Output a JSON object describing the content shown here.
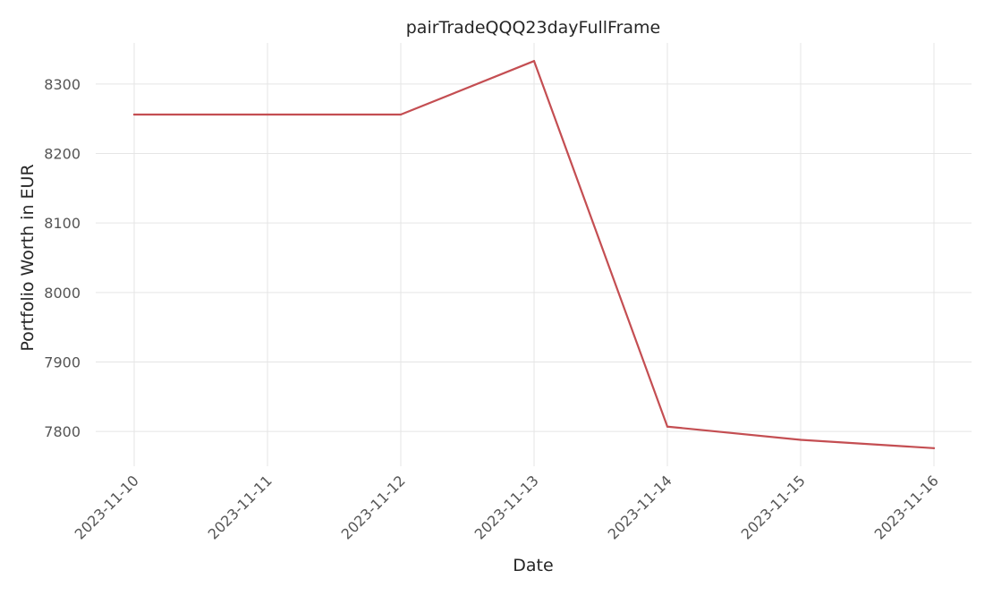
{
  "chart_data": {
    "type": "line",
    "title": "pairTradeQQQ23dayFullFrame",
    "xlabel": "Date",
    "ylabel": "Portfolio Worth in EUR",
    "x": [
      "2023-11-10",
      "2023-11-11",
      "2023-11-12",
      "2023-11-13",
      "2023-11-14",
      "2023-11-15",
      "2023-11-16"
    ],
    "y_ticks": [
      "7800",
      "7900",
      "8000",
      "8100",
      "8200",
      "8300"
    ],
    "series": [
      {
        "values": [
          8256,
          8256,
          8256,
          8333,
          7807,
          7788,
          7776
        ],
        "color": "#c44e52"
      }
    ],
    "ylim": [
      7750,
      8359
    ],
    "grid": true,
    "legend": "none"
  }
}
